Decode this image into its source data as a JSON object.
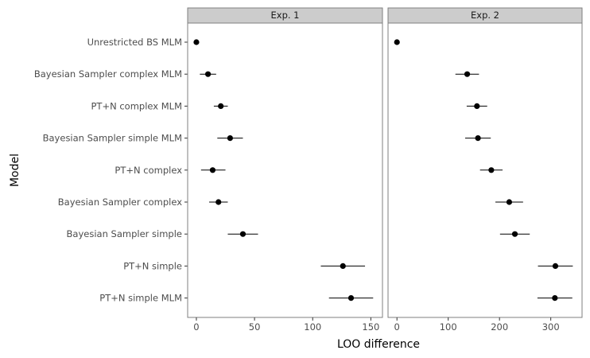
{
  "chart_data": {
    "type": "scatter",
    "xlabel": "LOO difference",
    "ylabel": "Model",
    "categories": [
      "Unrestricted BS MLM",
      "Bayesian Sampler complex MLM",
      "PT+N complex MLM",
      "Bayesian Sampler simple MLM",
      "PT+N complex",
      "Bayesian Sampler complex",
      "Bayesian Sampler simple",
      "PT+N simple",
      "PT+N simple MLM"
    ],
    "grid": false,
    "panels": [
      {
        "label": "Exp. 1",
        "xlim": [
          -7.5,
          160
        ],
        "xticks": [
          0,
          50,
          100,
          150
        ],
        "points": [
          {
            "x": 0,
            "lo": 0,
            "hi": 0
          },
          {
            "x": 10,
            "lo": 3,
            "hi": 17
          },
          {
            "x": 21,
            "lo": 15,
            "hi": 27
          },
          {
            "x": 29,
            "lo": 18,
            "hi": 40
          },
          {
            "x": 14,
            "lo": 4,
            "hi": 25
          },
          {
            "x": 19,
            "lo": 11,
            "hi": 27
          },
          {
            "x": 40,
            "lo": 27,
            "hi": 53
          },
          {
            "x": 126,
            "lo": 107,
            "hi": 145
          },
          {
            "x": 133,
            "lo": 114,
            "hi": 152
          }
        ]
      },
      {
        "label": "Exp. 2",
        "xlim": [
          -17.4,
          361
        ],
        "xticks": [
          0,
          100,
          200,
          300
        ],
        "points": [
          {
            "x": 0,
            "lo": 0,
            "hi": 0
          },
          {
            "x": 137,
            "lo": 114,
            "hi": 160
          },
          {
            "x": 156,
            "lo": 136,
            "hi": 176
          },
          {
            "x": 158,
            "lo": 133,
            "hi": 183
          },
          {
            "x": 184,
            "lo": 162,
            "hi": 206
          },
          {
            "x": 219,
            "lo": 192,
            "hi": 246
          },
          {
            "x": 230,
            "lo": 201,
            "hi": 259
          },
          {
            "x": 309,
            "lo": 275,
            "hi": 343
          },
          {
            "x": 308,
            "lo": 274,
            "hi": 342
          }
        ]
      }
    ]
  }
}
